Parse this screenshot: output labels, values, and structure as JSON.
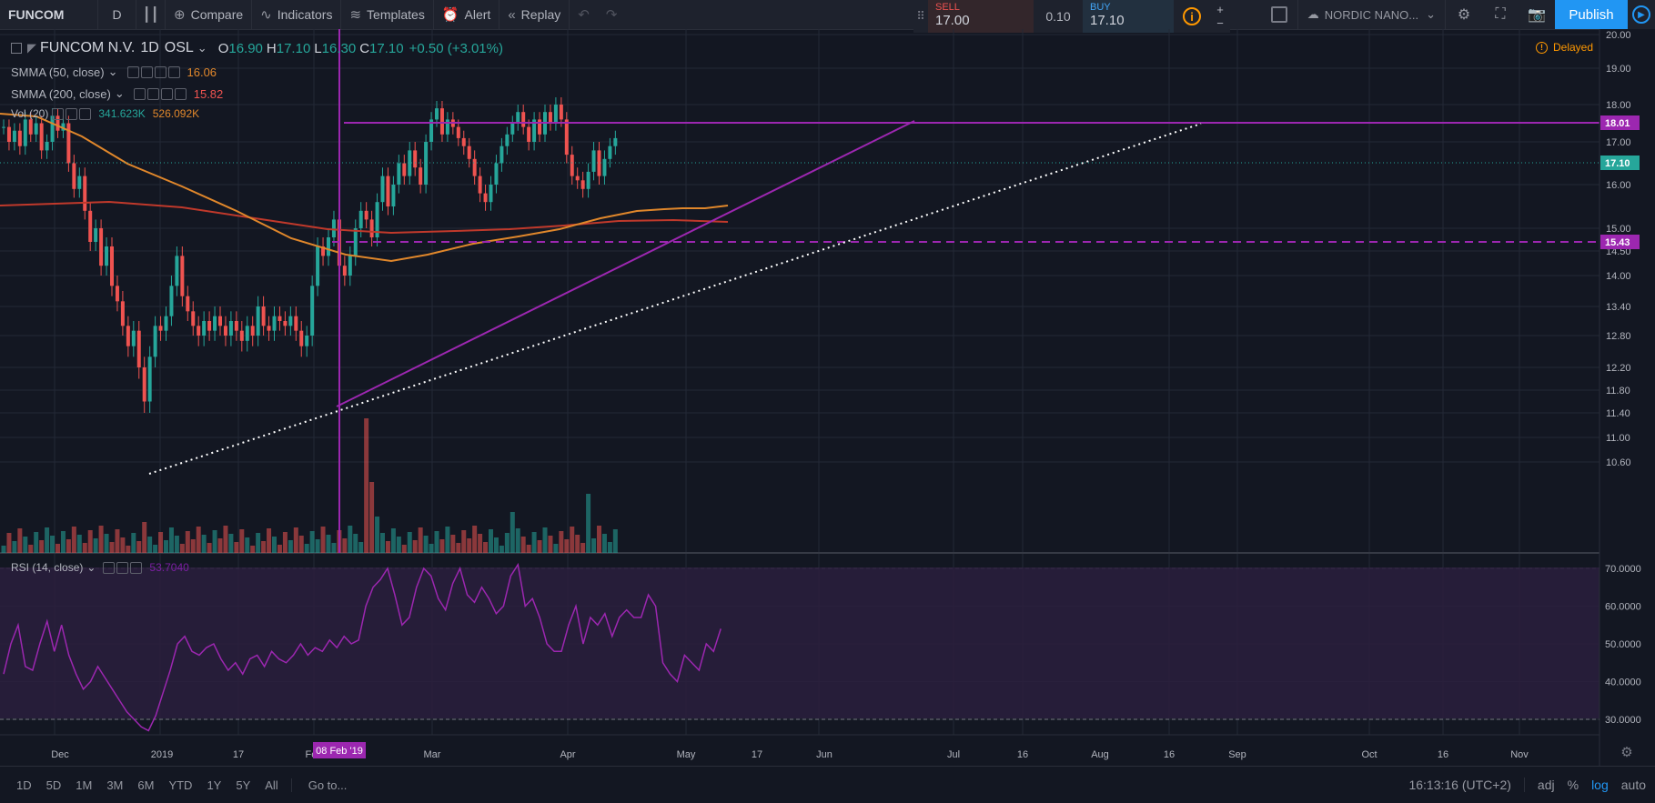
{
  "toolbar": {
    "symbol": "FUNCOM",
    "interval": "D",
    "compare": "Compare",
    "indicators": "Indicators",
    "templates": "Templates",
    "alert": "Alert",
    "replay": "Replay"
  },
  "trade": {
    "sell_label": "SELL",
    "sell_price": "17.00",
    "spread": "0.10",
    "buy_label": "BUY",
    "buy_price": "17.10",
    "plus": "+",
    "minus": "−"
  },
  "top_right": {
    "provider": "NORDIC NANO...",
    "publish": "Publish"
  },
  "legend": {
    "title": "FUNCOM N.V.",
    "interval": "1D",
    "exchange": "OSL",
    "open": "16.90",
    "high": "17.10",
    "low": "16.30",
    "close": "17.10",
    "change": "+0.50 (+3.01%)",
    "smma50_name": "SMMA (50, close)",
    "smma50_value": "16.06",
    "smma200_name": "SMMA (200, close)",
    "smma200_value": "15.82",
    "vol_name": "Vol (20)",
    "vol_value1": "341.623K",
    "vol_value2": "526.092K",
    "rsi_name": "RSI (14, close)",
    "rsi_value": "53.7040"
  },
  "delayed": "Delayed",
  "price_axis": {
    "ticks": [
      "20.00",
      "19.00",
      "18.00",
      "17.00",
      "16.00",
      "15.00",
      "14.50",
      "14.00",
      "13.40",
      "12.80",
      "12.20",
      "11.80",
      "11.40",
      "11.00",
      "10.60"
    ],
    "labels": [
      {
        "text": "18.01",
        "color": "#9c27b0"
      },
      {
        "text": "17.10",
        "color": "#26a69a"
      },
      {
        "text": "15.43",
        "color": "#9c27b0"
      }
    ]
  },
  "rsi_axis": {
    "ticks": [
      "70.0000",
      "60.0000",
      "50.0000",
      "40.0000",
      "30.0000"
    ]
  },
  "time_axis": {
    "ticks": [
      "Dec",
      "2019",
      "17",
      "Feb",
      "Mar",
      "Apr",
      "May",
      "17",
      "Jun",
      "Jul",
      "16",
      "Aug",
      "16",
      "Sep",
      "Oct",
      "16",
      "Nov"
    ],
    "highlight": "08 Feb '19"
  },
  "bottom": {
    "ranges": [
      "1D",
      "5D",
      "1M",
      "3M",
      "6M",
      "YTD",
      "1Y",
      "5Y",
      "All"
    ],
    "goto": "Go to...",
    "clock": "16:13:16 (UTC+2)",
    "adj": "adj",
    "pct": "%",
    "log": "log",
    "auto": "auto"
  },
  "colors": {
    "up": "#26a69a",
    "down": "#ef5350",
    "smma50": "#e0872b",
    "smma200": "#c0392b",
    "drawing": "#9c27b0",
    "rsi": "#9c27b0",
    "accent": "#2196f3"
  }
}
